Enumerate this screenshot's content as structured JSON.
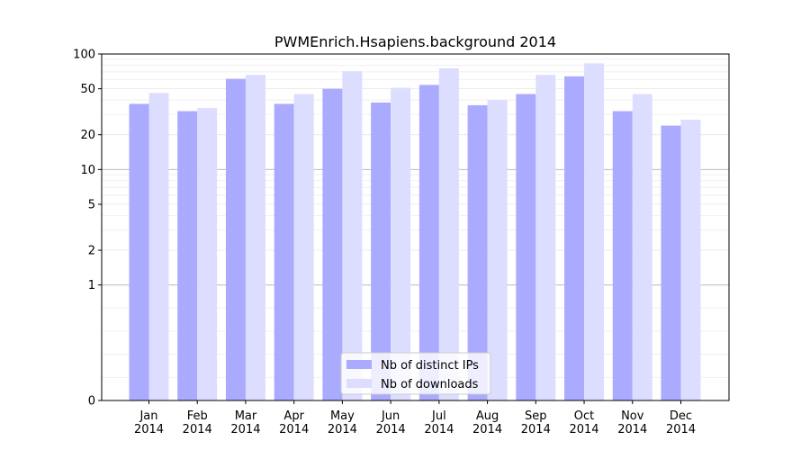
{
  "chart_data": {
    "type": "bar",
    "title": "PWMEnrich.Hsapiens.background 2014",
    "xlabel": "",
    "ylabel": "",
    "yscale": "symlog",
    "ylim": [
      0,
      100
    ],
    "yticks": [
      {
        "value": 0,
        "label": "0"
      },
      {
        "value": 1,
        "label": "1"
      },
      {
        "value": 2,
        "label": "2"
      },
      {
        "value": 5,
        "label": "5"
      },
      {
        "value": 10,
        "label": "10"
      },
      {
        "value": 20,
        "label": "20"
      },
      {
        "value": 50,
        "label": "50"
      },
      {
        "value": 100,
        "label": "100"
      }
    ],
    "categories": [
      [
        "Jan",
        "2014"
      ],
      [
        "Feb",
        "2014"
      ],
      [
        "Mar",
        "2014"
      ],
      [
        "Apr",
        "2014"
      ],
      [
        "May",
        "2014"
      ],
      [
        "Jun",
        "2014"
      ],
      [
        "Jul",
        "2014"
      ],
      [
        "Aug",
        "2014"
      ],
      [
        "Sep",
        "2014"
      ],
      [
        "Oct",
        "2014"
      ],
      [
        "Nov",
        "2014"
      ],
      [
        "Dec",
        "2014"
      ]
    ],
    "series": [
      {
        "name": "Nb of distinct IPs",
        "color": "#aaaaff",
        "values": [
          37,
          32,
          61,
          37,
          50,
          38,
          54,
          36,
          45,
          64,
          32,
          24
        ]
      },
      {
        "name": "Nb of downloads",
        "color": "#ddddff",
        "values": [
          46,
          34,
          66,
          45,
          71,
          51,
          75,
          40,
          66,
          83,
          45,
          27
        ]
      }
    ],
    "grid": true,
    "legend_position": "bottom-center"
  }
}
